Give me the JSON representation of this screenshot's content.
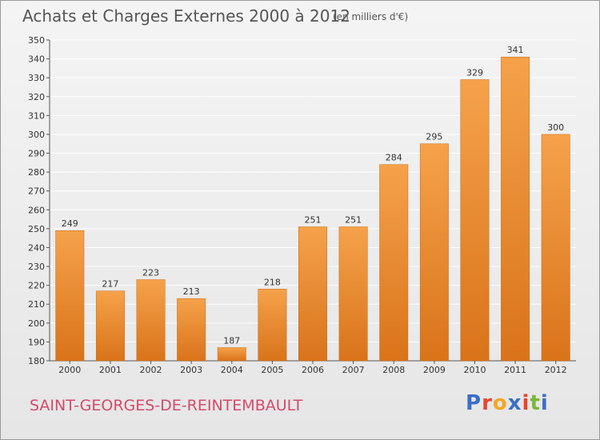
{
  "title": "Achats et Charges Externes 2000 à 2012",
  "subtitle": "(en milliers d'€)",
  "place": "SAINT-GEORGES-DE-REINTEMBAULT",
  "logo": {
    "text": "Proxiti",
    "letters": [
      "P",
      "r",
      "o",
      "x",
      "i",
      "t",
      "i"
    ],
    "colors": [
      "#3a6fc4",
      "#e8452c",
      "#f5a623",
      "#3a6fc4",
      "#e8452c",
      "#7ab83a",
      "#3a6fc4"
    ]
  },
  "colors": {
    "bar_top": "#f5a24a",
    "bar_bottom": "#d9731a",
    "bar_edge": "#c86815",
    "grid": "#ffffff",
    "axis": "#555555"
  },
  "chart_data": {
    "type": "bar",
    "title": "Achats et Charges Externes 2000 à 2012",
    "subtitle": "(en milliers d'€)",
    "categories": [
      "2000",
      "2001",
      "2002",
      "2003",
      "2004",
      "2005",
      "2006",
      "2007",
      "2008",
      "2009",
      "2010",
      "2011",
      "2012"
    ],
    "values": [
      249,
      217,
      223,
      213,
      187,
      218,
      251,
      251,
      284,
      295,
      329,
      341,
      300
    ],
    "ylim": [
      180,
      350
    ],
    "yticks": [
      180,
      190,
      200,
      210,
      220,
      230,
      240,
      250,
      260,
      270,
      280,
      290,
      300,
      310,
      320,
      330,
      340,
      350
    ],
    "grid": true,
    "xlabel": "",
    "ylabel": ""
  }
}
